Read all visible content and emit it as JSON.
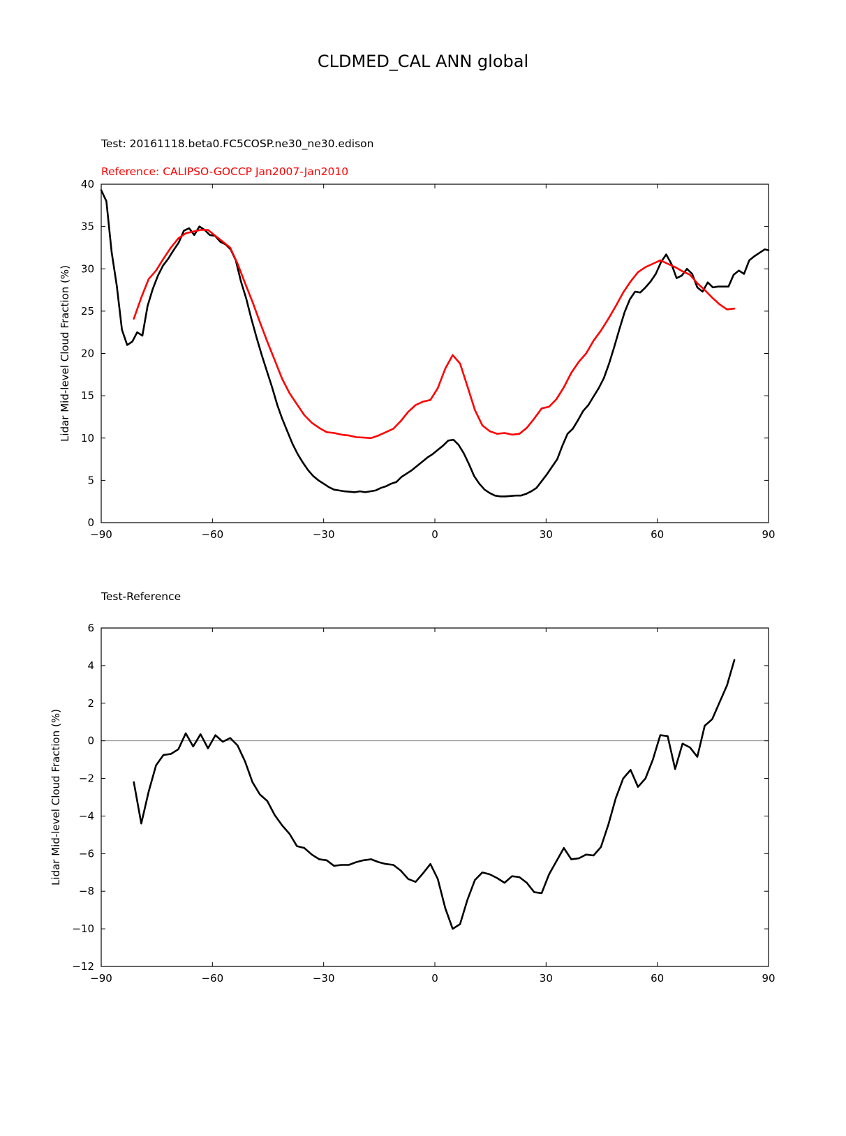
{
  "title": "CLDMED_CAL ANN global",
  "colors": {
    "test": "#000000",
    "reference": "#ff0000",
    "zero_line": "#808080"
  },
  "chart_data": [
    {
      "type": "line",
      "subtitle_test": "Test: 20161118.beta0.FC5COSP.ne30_ne30.edison",
      "subtitle_reference": "Reference: CALIPSO-GOCCP Jan2007-Jan2010",
      "xlabel": "",
      "ylabel": "Lidar Mid-level Cloud Fraction (%)",
      "xlim": [
        -90,
        90
      ],
      "ylim": [
        0,
        40
      ],
      "xticks": [
        -90,
        -60,
        -30,
        0,
        30,
        60,
        90
      ],
      "xtick_labels": [
        "−90",
        "−60",
        "−30",
        "0",
        "30",
        "60",
        "90"
      ],
      "yticks": [
        0,
        5,
        10,
        15,
        20,
        25,
        30,
        35,
        40
      ],
      "ytick_labels": [
        "0",
        "5",
        "10",
        "15",
        "20",
        "25",
        "30",
        "35",
        "40"
      ],
      "series": [
        {
          "color": "#000000",
          "x": [
            -90,
            -88.6,
            -87.2,
            -85.8,
            -84.4,
            -83.0,
            -81.6,
            -80.3,
            -78.9,
            -77.5,
            -76.1,
            -74.7,
            -73.3,
            -71.9,
            -70.5,
            -69.1,
            -67.7,
            -66.3,
            -64.9,
            -63.5,
            -62.1,
            -60.7,
            -59.3,
            -57.9,
            -56.5,
            -55.1,
            -53.7,
            -52.3,
            -50.9,
            -49.5,
            -48.1,
            -46.7,
            -45.3,
            -43.9,
            -42.5,
            -41.2,
            -39.8,
            -38.4,
            -37.0,
            -35.6,
            -34.2,
            -32.8,
            -31.4,
            -30.0,
            -28.6,
            -27.2,
            -25.8,
            -24.4,
            -23.0,
            -21.6,
            -20.2,
            -18.8,
            -17.4,
            -16.0,
            -14.6,
            -13.2,
            -11.8,
            -10.4,
            -9.0,
            -7.6,
            -6.2,
            -4.8,
            -3.4,
            -2.0,
            -0.6,
            0.8,
            2.2,
            3.6,
            5.0,
            6.4,
            7.8,
            9.2,
            10.6,
            12.0,
            13.4,
            14.8,
            16.2,
            17.6,
            19.0,
            20.4,
            21.8,
            23.2,
            24.6,
            26.0,
            27.4,
            28.8,
            30.2,
            31.6,
            33.0,
            34.4,
            35.8,
            37.2,
            38.6,
            40.0,
            41.4,
            42.8,
            44.2,
            45.6,
            47.0,
            48.4,
            49.8,
            51.2,
            52.6,
            54.0,
            55.4,
            56.8,
            58.2,
            59.6,
            61.0,
            62.4,
            63.8,
            65.2,
            66.6,
            68.0,
            69.4,
            70.8,
            72.2,
            73.6,
            75.0,
            76.4,
            77.8,
            79.2,
            80.6,
            82.0,
            83.4,
            84.8,
            86.2,
            87.6,
            89.0,
            90.0
          ],
          "values": [
            39.3,
            38.0,
            32.0,
            28.0,
            22.8,
            21.0,
            21.4,
            22.5,
            22.1,
            25.6,
            27.6,
            29.2,
            30.4,
            31.2,
            32.2,
            33.1,
            34.5,
            34.8,
            34.0,
            35.0,
            34.6,
            34.0,
            33.9,
            33.2,
            32.9,
            32.3,
            31.0,
            28.5,
            26.5,
            24.1,
            21.9,
            19.8,
            17.9,
            16.0,
            13.9,
            12.3,
            10.8,
            9.3,
            8.1,
            7.1,
            6.2,
            5.5,
            5.0,
            4.6,
            4.2,
            3.9,
            3.8,
            3.7,
            3.65,
            3.6,
            3.7,
            3.6,
            3.7,
            3.8,
            4.1,
            4.3,
            4.6,
            4.8,
            5.4,
            5.8,
            6.2,
            6.7,
            7.2,
            7.7,
            8.1,
            8.6,
            9.1,
            9.7,
            9.8,
            9.2,
            8.2,
            6.9,
            5.5,
            4.6,
            3.9,
            3.5,
            3.2,
            3.1,
            3.1,
            3.15,
            3.2,
            3.2,
            3.4,
            3.7,
            4.1,
            4.9,
            5.7,
            6.6,
            7.5,
            9.1,
            10.5,
            11.1,
            12.1,
            13.2,
            13.9,
            14.9,
            15.9,
            17.1,
            18.8,
            20.8,
            22.9,
            24.9,
            26.4,
            27.3,
            27.2,
            27.8,
            28.5,
            29.4,
            30.8,
            31.7,
            30.6,
            28.9,
            29.2,
            30.0,
            29.4,
            27.8,
            27.3,
            28.4,
            27.8,
            27.9,
            27.9,
            27.9,
            29.3,
            29.8,
            29.4,
            31.0,
            31.5,
            31.9,
            32.3,
            32.2
          ]
        },
        {
          "color": "#ff0000",
          "x": [
            -81.2,
            -79.2,
            -77.2,
            -75.2,
            -73.2,
            -71.2,
            -69.2,
            -67.2,
            -65.2,
            -63.2,
            -61.2,
            -59.2,
            -57.2,
            -55.2,
            -53.2,
            -51.2,
            -49.2,
            -47.2,
            -45.2,
            -43.2,
            -41.2,
            -39.2,
            -37.2,
            -35.2,
            -33.2,
            -31.2,
            -29.2,
            -27.2,
            -25.2,
            -23.2,
            -21.2,
            -19.2,
            -17.2,
            -15.2,
            -13.2,
            -11.2,
            -9.2,
            -7.2,
            -5.2,
            -3.2,
            -1.2,
            0.8,
            2.8,
            4.8,
            6.8,
            8.8,
            10.8,
            12.8,
            14.8,
            16.8,
            18.8,
            20.8,
            22.8,
            24.8,
            26.8,
            28.8,
            30.8,
            32.8,
            34.8,
            36.8,
            38.8,
            40.8,
            42.8,
            44.8,
            46.8,
            48.8,
            50.8,
            52.8,
            54.8,
            56.8,
            58.8,
            60.8,
            62.8,
            64.8,
            66.8,
            68.8,
            70.8,
            72.8,
            74.8,
            76.8,
            78.8,
            80.8
          ],
          "values": [
            24.1,
            26.6,
            28.8,
            29.8,
            31.2,
            32.5,
            33.6,
            34.2,
            34.4,
            34.6,
            34.6,
            33.9,
            33.2,
            32.5,
            30.6,
            28.3,
            26.1,
            23.7,
            21.4,
            19.2,
            17.0,
            15.3,
            14.0,
            12.7,
            11.8,
            11.2,
            10.7,
            10.6,
            10.4,
            10.3,
            10.1,
            10.05,
            10.0,
            10.3,
            10.7,
            11.1,
            12.0,
            13.1,
            13.9,
            14.3,
            14.5,
            15.9,
            18.2,
            19.8,
            18.8,
            16.1,
            13.3,
            11.5,
            10.8,
            10.5,
            10.6,
            10.4,
            10.5,
            11.2,
            12.3,
            13.5,
            13.7,
            14.6,
            16.0,
            17.7,
            19.0,
            20.0,
            21.5,
            22.7,
            24.1,
            25.6,
            27.2,
            28.5,
            29.6,
            30.2,
            30.6,
            31.0,
            30.6,
            30.2,
            29.7,
            29.3,
            28.3,
            27.5,
            26.6,
            25.8,
            25.2,
            25.3
          ]
        }
      ]
    },
    {
      "type": "line",
      "subtitle": "Test-Reference",
      "xlabel": "",
      "ylabel": "Lidar Mid-level Cloud Fraction (%)",
      "xlim": [
        -90,
        90
      ],
      "ylim": [
        -12,
        6
      ],
      "xticks": [
        -90,
        -60,
        -30,
        0,
        30,
        60,
        90
      ],
      "xtick_labels": [
        "−90",
        "−60",
        "−30",
        "0",
        "30",
        "60",
        "90"
      ],
      "yticks": [
        -12,
        -10,
        -8,
        -6,
        -4,
        -2,
        0,
        2,
        4,
        6
      ],
      "ytick_labels": [
        "−12",
        "−10",
        "−8",
        "−6",
        "−4",
        "−2",
        "0",
        "2",
        "4",
        "6"
      ],
      "zero_line": 0,
      "series": [
        {
          "color": "#000000",
          "x": [
            -81.2,
            -79.2,
            -77.2,
            -75.2,
            -73.2,
            -71.2,
            -69.2,
            -67.2,
            -65.2,
            -63.2,
            -61.2,
            -59.2,
            -57.2,
            -55.2,
            -53.2,
            -51.2,
            -49.2,
            -47.2,
            -45.2,
            -43.2,
            -41.2,
            -39.2,
            -37.2,
            -35.2,
            -33.2,
            -31.2,
            -29.2,
            -27.2,
            -25.2,
            -23.2,
            -21.2,
            -19.2,
            -17.2,
            -15.2,
            -13.2,
            -11.2,
            -9.2,
            -7.2,
            -5.2,
            -3.2,
            -1.2,
            0.8,
            2.8,
            4.8,
            6.8,
            8.8,
            10.8,
            12.8,
            14.8,
            16.8,
            18.8,
            20.8,
            22.8,
            24.8,
            26.8,
            28.8,
            30.8,
            32.8,
            34.8,
            36.8,
            38.8,
            40.8,
            42.8,
            44.8,
            46.8,
            48.8,
            50.8,
            52.8,
            54.8,
            56.8,
            58.8,
            60.8,
            62.8,
            64.8,
            66.8,
            68.8,
            70.8,
            72.8,
            74.8,
            76.8,
            78.8,
            80.8
          ],
          "values": [
            -2.2,
            -4.4,
            -2.7,
            -1.3,
            -0.75,
            -0.7,
            -0.45,
            0.4,
            -0.3,
            0.35,
            -0.4,
            0.3,
            -0.05,
            0.15,
            -0.25,
            -1.1,
            -2.2,
            -2.85,
            -3.2,
            -3.95,
            -4.5,
            -4.95,
            -5.6,
            -5.7,
            -6.05,
            -6.3,
            -6.35,
            -6.65,
            -6.6,
            -6.6,
            -6.45,
            -6.35,
            -6.3,
            -6.45,
            -6.55,
            -6.6,
            -6.9,
            -7.35,
            -7.5,
            -7.05,
            -6.55,
            -7.35,
            -8.9,
            -10.0,
            -9.75,
            -8.45,
            -7.4,
            -7.0,
            -7.1,
            -7.3,
            -7.55,
            -7.2,
            -7.25,
            -7.55,
            -8.05,
            -8.1,
            -7.1,
            -6.4,
            -5.7,
            -6.3,
            -6.25,
            -6.05,
            -6.1,
            -5.65,
            -4.45,
            -3.05,
            -2.0,
            -1.55,
            -2.45,
            -2.0,
            -1.0,
            0.3,
            0.25,
            -1.5,
            -0.15,
            -0.35,
            -0.85,
            0.8,
            1.15,
            2.05,
            2.95,
            4.3
          ]
        }
      ]
    }
  ]
}
